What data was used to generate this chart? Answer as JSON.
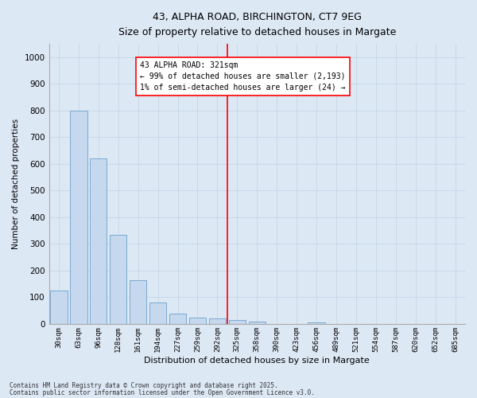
{
  "title1": "43, ALPHA ROAD, BIRCHINGTON, CT7 9EG",
  "title2": "Size of property relative to detached houses in Margate",
  "xlabel": "Distribution of detached houses by size in Margate",
  "ylabel": "Number of detached properties",
  "categories": [
    "30sqm",
    "63sqm",
    "96sqm",
    "128sqm",
    "161sqm",
    "194sqm",
    "227sqm",
    "259sqm",
    "292sqm",
    "325sqm",
    "358sqm",
    "390sqm",
    "423sqm",
    "456sqm",
    "489sqm",
    "521sqm",
    "554sqm",
    "587sqm",
    "620sqm",
    "652sqm",
    "685sqm"
  ],
  "bar_heights": [
    125,
    800,
    620,
    335,
    165,
    80,
    38,
    25,
    22,
    15,
    10,
    0,
    0,
    5,
    0,
    0,
    0,
    0,
    0,
    0,
    0
  ],
  "bar_color": "#c5d8ee",
  "bar_edge_color": "#7aaad0",
  "ylim": [
    0,
    1050
  ],
  "yticks": [
    0,
    100,
    200,
    300,
    400,
    500,
    600,
    700,
    800,
    900,
    1000
  ],
  "grid_color": "#c8d8e8",
  "bg_color": "#dde8f5",
  "vline_color": "red",
  "annotation_text": "43 ALPHA ROAD: 321sqm\n← 99% of detached houses are smaller (2,193)\n1% of semi-detached houses are larger (24) →",
  "footer1": "Contains HM Land Registry data © Crown copyright and database right 2025.",
  "footer2": "Contains public sector information licensed under the Open Government Licence v3.0."
}
